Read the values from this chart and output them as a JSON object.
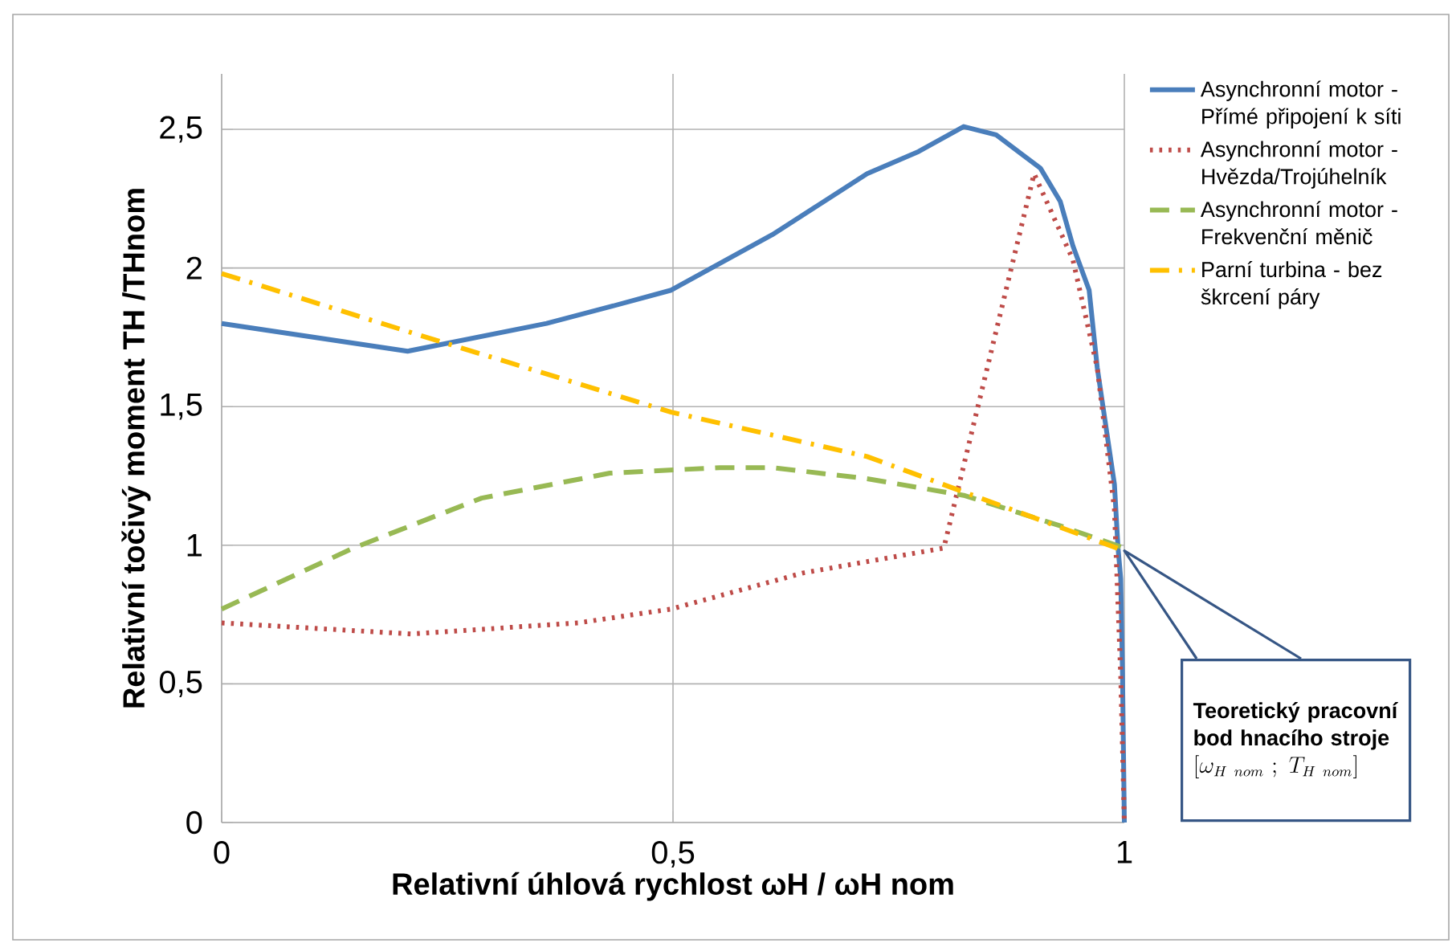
{
  "chart_data": {
    "type": "line",
    "xlabel": "Relativní úhlová rychlost  ωH  / ωH nom",
    "ylabel": "Relativní točivý moment   TH  /THnom",
    "xlim": [
      0,
      1
    ],
    "ylim": [
      0,
      2.7
    ],
    "xticks": [
      0,
      {
        "value": 0.5,
        "label": "0,5"
      },
      1
    ],
    "yticks": [
      0,
      {
        "value": 0.5,
        "label": "0,5"
      },
      1,
      {
        "value": 1.5,
        "label": "1,5"
      },
      2,
      {
        "value": 2.5,
        "label": "2,5"
      }
    ],
    "grid": true,
    "legend": "right",
    "series": [
      {
        "name": "Asynchronní motor - Přímé připojení k síti",
        "color": "#4a7ebb",
        "line_style": "solid",
        "x": [
          0,
          0.206,
          0.36,
          0.43,
          0.498,
          0.61,
          0.715,
          0.772,
          0.822,
          0.858,
          0.907,
          0.929,
          0.943,
          0.961,
          0.97,
          0.989,
          0.993,
          0.996,
          0.998,
          1.0
        ],
        "values": [
          1.8,
          1.7,
          1.8,
          1.86,
          1.92,
          2.12,
          2.34,
          2.42,
          2.51,
          2.48,
          2.36,
          2.24,
          2.08,
          1.92,
          1.64,
          1.22,
          0.99,
          0.88,
          0.53,
          0
        ]
      },
      {
        "name": "Asynchronní motor - Hvězda/Trojúhelník",
        "color": "#be4b48",
        "line_style": "dotted",
        "x": [
          0,
          0.21,
          0.395,
          0.498,
          0.644,
          0.8,
          0.9,
          0.943,
          0.97,
          0.989,
          0.996,
          1.0
        ],
        "values": [
          0.72,
          0.68,
          0.72,
          0.77,
          0.9,
          0.99,
          2.34,
          2.03,
          1.64,
          1.13,
          0.53,
          0
        ]
      },
      {
        "name": "Asynchronní motor - Frekvenční měnič",
        "color": "#98b954",
        "line_style": "dashed",
        "x": [
          0,
          0.146,
          0.288,
          0.43,
          0.552,
          0.61,
          0.715,
          0.822,
          0.929,
          1.0
        ],
        "values": [
          0.77,
          0.99,
          1.17,
          1.26,
          1.28,
          1.28,
          1.24,
          1.18,
          1.07,
          0.99
        ]
      },
      {
        "name": "Parní turbina - bez škrcení páry",
        "color": "#ffc000",
        "line_style": "dashdot",
        "x": [
          0,
          0.217,
          0.498,
          0.715,
          1.0
        ],
        "values": [
          1.98,
          1.76,
          1.48,
          1.32,
          0.98
        ]
      }
    ],
    "annotations": [
      "Teoretický pracovní bod hnacího stroje",
      "[\\omega_{H\\ nom}\\ ;\\ T_{H\\ nom}]"
    ]
  }
}
